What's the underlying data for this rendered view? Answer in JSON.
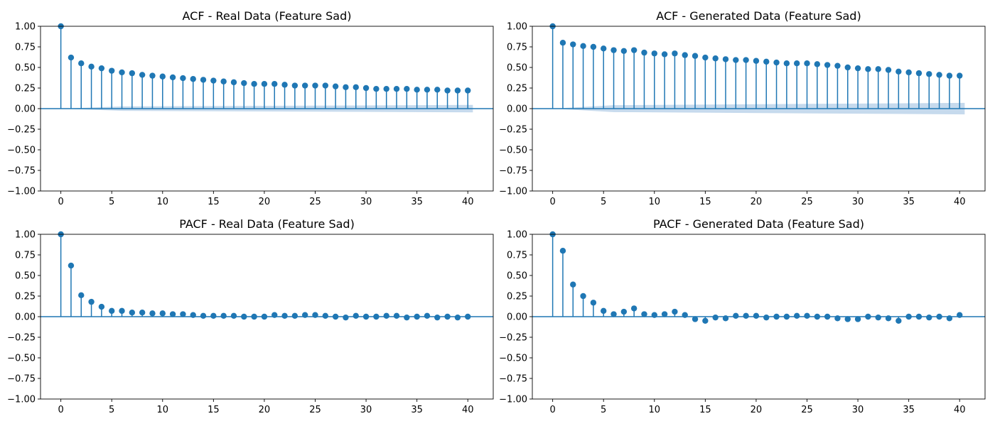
{
  "colors": {
    "stem": "#1f77b4",
    "confidence_band": "#bcd3ea",
    "axes": "#000000"
  },
  "chart_data": [
    {
      "type": "stem",
      "title": "ACF - Real Data (Feature Sad)",
      "xlabel": "",
      "ylabel": "",
      "xlim": [
        -2,
        42.5
      ],
      "ylim": [
        -1.0,
        1.0
      ],
      "xticks": [
        0,
        5,
        10,
        15,
        20,
        25,
        30,
        35,
        40
      ],
      "yticks": [
        1.0,
        0.75,
        0.5,
        0.25,
        0.0,
        -0.25,
        -0.5,
        -0.75,
        -1.0
      ],
      "ytick_labels": [
        "1.00",
        "0.75",
        "0.50",
        "0.25",
        "0.00",
        "−0.25",
        "−0.50",
        "−0.75",
        "−1.00"
      ],
      "grid": false,
      "band_halfwidth_end": 0.045,
      "lags": [
        0,
        1,
        2,
        3,
        4,
        5,
        6,
        7,
        8,
        9,
        10,
        11,
        12,
        13,
        14,
        15,
        16,
        17,
        18,
        19,
        20,
        21,
        22,
        23,
        24,
        25,
        26,
        27,
        28,
        29,
        30,
        31,
        32,
        33,
        34,
        35,
        36,
        37,
        38,
        39,
        40
      ],
      "values": [
        1.0,
        0.62,
        0.55,
        0.51,
        0.49,
        0.46,
        0.44,
        0.43,
        0.41,
        0.4,
        0.39,
        0.38,
        0.37,
        0.36,
        0.35,
        0.34,
        0.33,
        0.32,
        0.31,
        0.3,
        0.3,
        0.3,
        0.29,
        0.28,
        0.28,
        0.28,
        0.28,
        0.27,
        0.26,
        0.26,
        0.25,
        0.24,
        0.24,
        0.24,
        0.24,
        0.23,
        0.23,
        0.23,
        0.22,
        0.22,
        0.22
      ]
    },
    {
      "type": "stem",
      "title": "ACF - Generated Data (Feature Sad)",
      "xlabel": "",
      "ylabel": "",
      "xlim": [
        -2,
        42.5
      ],
      "ylim": [
        -1.0,
        1.0
      ],
      "xticks": [
        0,
        5,
        10,
        15,
        20,
        25,
        30,
        35,
        40
      ],
      "yticks": [
        1.0,
        0.75,
        0.5,
        0.25,
        0.0,
        -0.25,
        -0.5,
        -0.75,
        -1.0
      ],
      "ytick_labels": [
        "1.00",
        "0.75",
        "0.50",
        "0.25",
        "0.00",
        "−0.25",
        "−0.50",
        "−0.75",
        "−1.00"
      ],
      "grid": false,
      "band_halfwidth_end": 0.07,
      "lags": [
        0,
        1,
        2,
        3,
        4,
        5,
        6,
        7,
        8,
        9,
        10,
        11,
        12,
        13,
        14,
        15,
        16,
        17,
        18,
        19,
        20,
        21,
        22,
        23,
        24,
        25,
        26,
        27,
        28,
        29,
        30,
        31,
        32,
        33,
        34,
        35,
        36,
        37,
        38,
        39,
        40
      ],
      "values": [
        1.0,
        0.8,
        0.78,
        0.76,
        0.75,
        0.73,
        0.71,
        0.7,
        0.71,
        0.68,
        0.67,
        0.66,
        0.67,
        0.65,
        0.64,
        0.62,
        0.61,
        0.6,
        0.59,
        0.59,
        0.58,
        0.57,
        0.56,
        0.55,
        0.55,
        0.55,
        0.54,
        0.53,
        0.52,
        0.5,
        0.49,
        0.48,
        0.48,
        0.47,
        0.45,
        0.44,
        0.43,
        0.42,
        0.41,
        0.4,
        0.4
      ]
    },
    {
      "type": "stem",
      "title": "PACF - Real Data (Feature Sad)",
      "xlabel": "",
      "ylabel": "",
      "xlim": [
        -2,
        42.5
      ],
      "ylim": [
        -1.0,
        1.0
      ],
      "xticks": [
        0,
        5,
        10,
        15,
        20,
        25,
        30,
        35,
        40
      ],
      "yticks": [
        1.0,
        0.75,
        0.5,
        0.25,
        0.0,
        -0.25,
        -0.5,
        -0.75,
        -1.0
      ],
      "ytick_labels": [
        "1.00",
        "0.75",
        "0.50",
        "0.25",
        "0.00",
        "−0.25",
        "−0.50",
        "−0.75",
        "−1.00"
      ],
      "grid": false,
      "band_halfwidth_end": 0,
      "lags": [
        0,
        1,
        2,
        3,
        4,
        5,
        6,
        7,
        8,
        9,
        10,
        11,
        12,
        13,
        14,
        15,
        16,
        17,
        18,
        19,
        20,
        21,
        22,
        23,
        24,
        25,
        26,
        27,
        28,
        29,
        30,
        31,
        32,
        33,
        34,
        35,
        36,
        37,
        38,
        39,
        40
      ],
      "values": [
        1.0,
        0.62,
        0.26,
        0.18,
        0.12,
        0.07,
        0.07,
        0.05,
        0.05,
        0.04,
        0.04,
        0.03,
        0.03,
        0.02,
        0.01,
        0.01,
        0.01,
        0.01,
        0.0,
        0.0,
        0.0,
        0.02,
        0.01,
        0.01,
        0.02,
        0.02,
        0.01,
        0.0,
        -0.01,
        0.01,
        0.0,
        0.0,
        0.01,
        0.01,
        -0.01,
        0.0,
        0.01,
        -0.01,
        0.0,
        -0.01,
        0.0
      ]
    },
    {
      "type": "stem",
      "title": "PACF - Generated Data (Feature Sad)",
      "xlabel": "",
      "ylabel": "",
      "xlim": [
        -2,
        42.5
      ],
      "ylim": [
        -1.0,
        1.0
      ],
      "xticks": [
        0,
        5,
        10,
        15,
        20,
        25,
        30,
        35,
        40
      ],
      "yticks": [
        1.0,
        0.75,
        0.5,
        0.25,
        0.0,
        -0.25,
        -0.5,
        -0.75,
        -1.0
      ],
      "ytick_labels": [
        "1.00",
        "0.75",
        "0.50",
        "0.25",
        "0.00",
        "−0.25",
        "−0.50",
        "−0.75",
        "−1.00"
      ],
      "grid": false,
      "band_halfwidth_end": 0,
      "lags": [
        0,
        1,
        2,
        3,
        4,
        5,
        6,
        7,
        8,
        9,
        10,
        11,
        12,
        13,
        14,
        15,
        16,
        17,
        18,
        19,
        20,
        21,
        22,
        23,
        24,
        25,
        26,
        27,
        28,
        29,
        30,
        31,
        32,
        33,
        34,
        35,
        36,
        37,
        38,
        39,
        40
      ],
      "values": [
        1.0,
        0.8,
        0.39,
        0.25,
        0.17,
        0.07,
        0.03,
        0.06,
        0.1,
        0.03,
        0.02,
        0.03,
        0.06,
        0.02,
        -0.03,
        -0.05,
        -0.01,
        -0.02,
        0.01,
        0.01,
        0.01,
        -0.01,
        0.0,
        0.0,
        0.01,
        0.01,
        0.0,
        0.0,
        -0.02,
        -0.03,
        -0.03,
        0.0,
        -0.01,
        -0.02,
        -0.05,
        0.0,
        0.0,
        -0.01,
        0.0,
        -0.02,
        0.02
      ]
    }
  ]
}
